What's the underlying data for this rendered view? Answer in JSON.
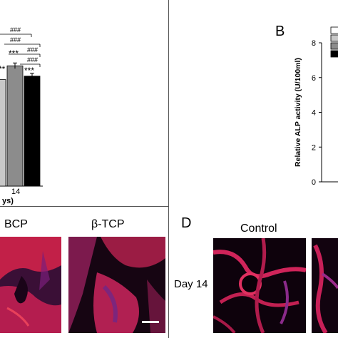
{
  "panel_a": {
    "chart_data": {
      "type": "bar",
      "series": [
        {
          "values": [
            62
          ]
        },
        {
          "values": [
            70
          ]
        },
        {
          "values": [
            64
          ]
        }
      ],
      "categories": [
        "14"
      ],
      "xlabel_fragment": "ys)",
      "sig_labels": [
        "***",
        "***",
        "**"
      ],
      "sig_brackets": [
        "###",
        "###",
        "###",
        "###"
      ],
      "ylim": [
        0,
        100
      ],
      "colors": [
        "#c8c8c8",
        "#8c8c8c",
        "#000000"
      ]
    }
  },
  "panel_b": {
    "letter": "B",
    "chart_data": {
      "type": "bar",
      "ylabel": "Relative ALP activity (U/100ml)",
      "yticks": [
        "0",
        "2",
        "4",
        "6",
        "8"
      ],
      "ylim": [
        0,
        8
      ],
      "legend_colors": [
        "#ffffff",
        "#c8c8c8",
        "#8c8c8c",
        "#000000"
      ]
    }
  },
  "panel_c": {
    "labels": [
      "BCP",
      "β-TCP"
    ]
  },
  "panel_d": {
    "letter": "D",
    "column_label": "Control",
    "row_label": "Day 14"
  }
}
